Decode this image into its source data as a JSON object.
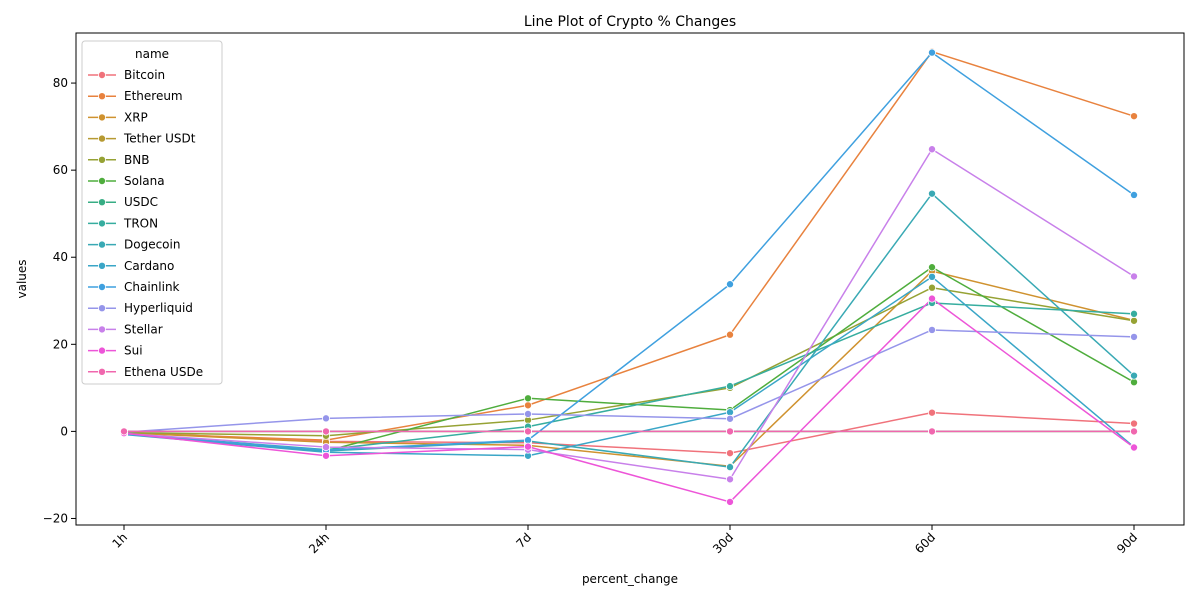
{
  "chart_data": {
    "type": "line",
    "title": "Line Plot of Crypto % Changes",
    "xlabel": "percent_change",
    "ylabel": "values",
    "categories": [
      "1h",
      "24h",
      "7d",
      "30d",
      "60d",
      "90d"
    ],
    "ylim": [
      -21.5,
      91.5
    ],
    "yticks": [
      -20,
      0,
      20,
      40,
      60,
      80
    ],
    "ytick_labels": [
      "−20",
      "0",
      "20",
      "40",
      "60",
      "80"
    ],
    "grid": false,
    "legend": {
      "title": "name",
      "placement": "top-left"
    },
    "series": [
      {
        "name": "Bitcoin",
        "color": "#f0727b",
        "values": [
          -0.2,
          -2.3,
          -2.6,
          -5.0,
          4.3,
          1.8
        ]
      },
      {
        "name": "Ethereum",
        "color": "#e8823e",
        "values": [
          -0.4,
          -2.0,
          6.0,
          22.2,
          87.2,
          72.4
        ]
      },
      {
        "name": "XRP",
        "color": "#cf922f",
        "values": [
          -0.3,
          -2.5,
          -3.2,
          -8.0,
          36.8,
          25.5
        ]
      },
      {
        "name": "Tether USDt",
        "color": "#b69a32",
        "values": [
          0.0,
          0.0,
          0.0,
          0.0,
          0.0,
          0.0
        ]
      },
      {
        "name": "BNB",
        "color": "#96a234",
        "values": [
          -0.3,
          -1.0,
          2.6,
          10.0,
          33.0,
          25.4
        ]
      },
      {
        "name": "Solana",
        "color": "#4fad3d",
        "values": [
          -0.5,
          -4.5,
          7.6,
          4.9,
          37.7,
          11.3
        ]
      },
      {
        "name": "USDC",
        "color": "#37ad84",
        "values": [
          0.0,
          0.0,
          0.0,
          0.0,
          0.0,
          0.0
        ]
      },
      {
        "name": "TRON",
        "color": "#36ad9f",
        "values": [
          -0.6,
          -4.2,
          1.1,
          10.4,
          29.5,
          27.0
        ]
      },
      {
        "name": "Dogecoin",
        "color": "#39a9b4",
        "values": [
          -0.5,
          -4.5,
          -2.2,
          -8.2,
          54.6,
          12.8
        ]
      },
      {
        "name": "Cardano",
        "color": "#3aa6c7",
        "values": [
          -0.7,
          -4.8,
          -5.6,
          4.4,
          35.5,
          -3.6
        ]
      },
      {
        "name": "Chainlink",
        "color": "#3fa0df",
        "values": [
          -0.6,
          -4.3,
          -2.0,
          33.8,
          87.0,
          54.3
        ]
      },
      {
        "name": "Hyperliquid",
        "color": "#9595ea",
        "values": [
          -0.2,
          3.0,
          4.0,
          2.9,
          23.3,
          21.7
        ]
      },
      {
        "name": "Stellar",
        "color": "#c880ea",
        "values": [
          -0.5,
          -3.6,
          -4.2,
          -11.0,
          64.8,
          35.6
        ]
      },
      {
        "name": "Sui",
        "color": "#ed55d8",
        "values": [
          -0.4,
          -5.6,
          -3.5,
          -16.2,
          30.5,
          -3.7
        ]
      },
      {
        "name": "Ethena USDe",
        "color": "#f067ae",
        "values": [
          0.0,
          0.0,
          0.0,
          0.0,
          0.0,
          0.0
        ]
      }
    ]
  }
}
